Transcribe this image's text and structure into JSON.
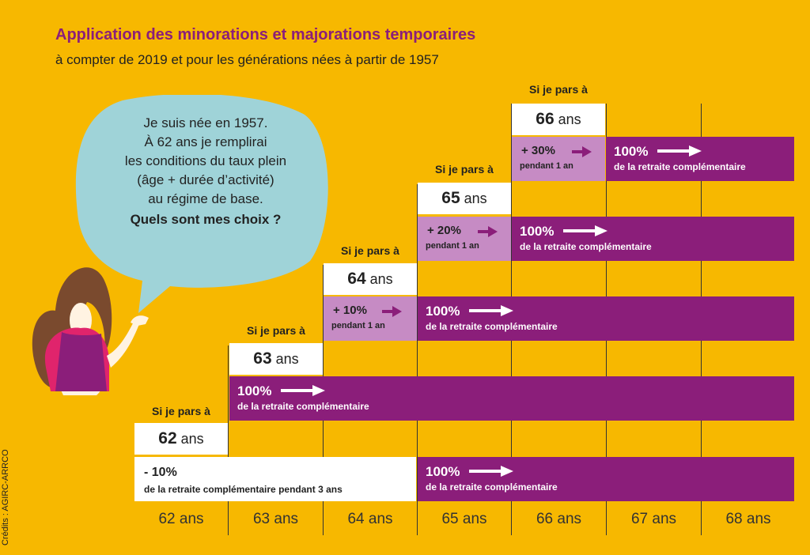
{
  "header": {
    "title": "Application des minorations et majorations temporaires",
    "subtitle": "à compter de 2019 et pour les générations nées à partir de 1957"
  },
  "speech": {
    "lines": [
      "Je suis née en 1957.",
      "À 62 ans je remplirai",
      "les conditions du taux plein",
      "(âge + durée d’activité)",
      "au régime de base."
    ],
    "question": "Quels sont mes choix ?"
  },
  "steps": [
    {
      "label": "Si je pars à",
      "age_num": "62",
      "age_unit": " ans"
    },
    {
      "label": "Si je pars à",
      "age_num": "63",
      "age_unit": " ans"
    },
    {
      "label": "Si je pars à",
      "age_num": "64",
      "age_unit": " ans"
    },
    {
      "label": "Si je pars à",
      "age_num": "65",
      "age_unit": " ans"
    },
    {
      "label": "Si je pars à",
      "age_num": "66",
      "age_unit": " ans"
    }
  ],
  "adjustments": {
    "minus": {
      "pct": "- 10%",
      "sub": "de la retraite complémentaire pendant 3 ans"
    },
    "plus10": {
      "pct": "+ 10%",
      "sub": "pendant 1 an"
    },
    "plus20": {
      "pct": "+ 20%",
      "sub": "pendant 1 an"
    },
    "plus30": {
      "pct": "+ 30%",
      "sub": "pendant 1 an"
    },
    "full": {
      "pct": "100%",
      "sub": "de la retraite complémentaire"
    }
  },
  "axis": [
    "62 ans",
    "63 ans",
    "64 ans",
    "65 ans",
    "66 ans",
    "67 ans",
    "68 ans"
  ],
  "credits": "Crédits : AGIRC-ARRCO",
  "colors": {
    "background": "#F7B800",
    "purple": "#8B1E7A",
    "lilac": "#C68BC4",
    "title": "#8B1E7A",
    "bubble": "#9FD3D8"
  }
}
